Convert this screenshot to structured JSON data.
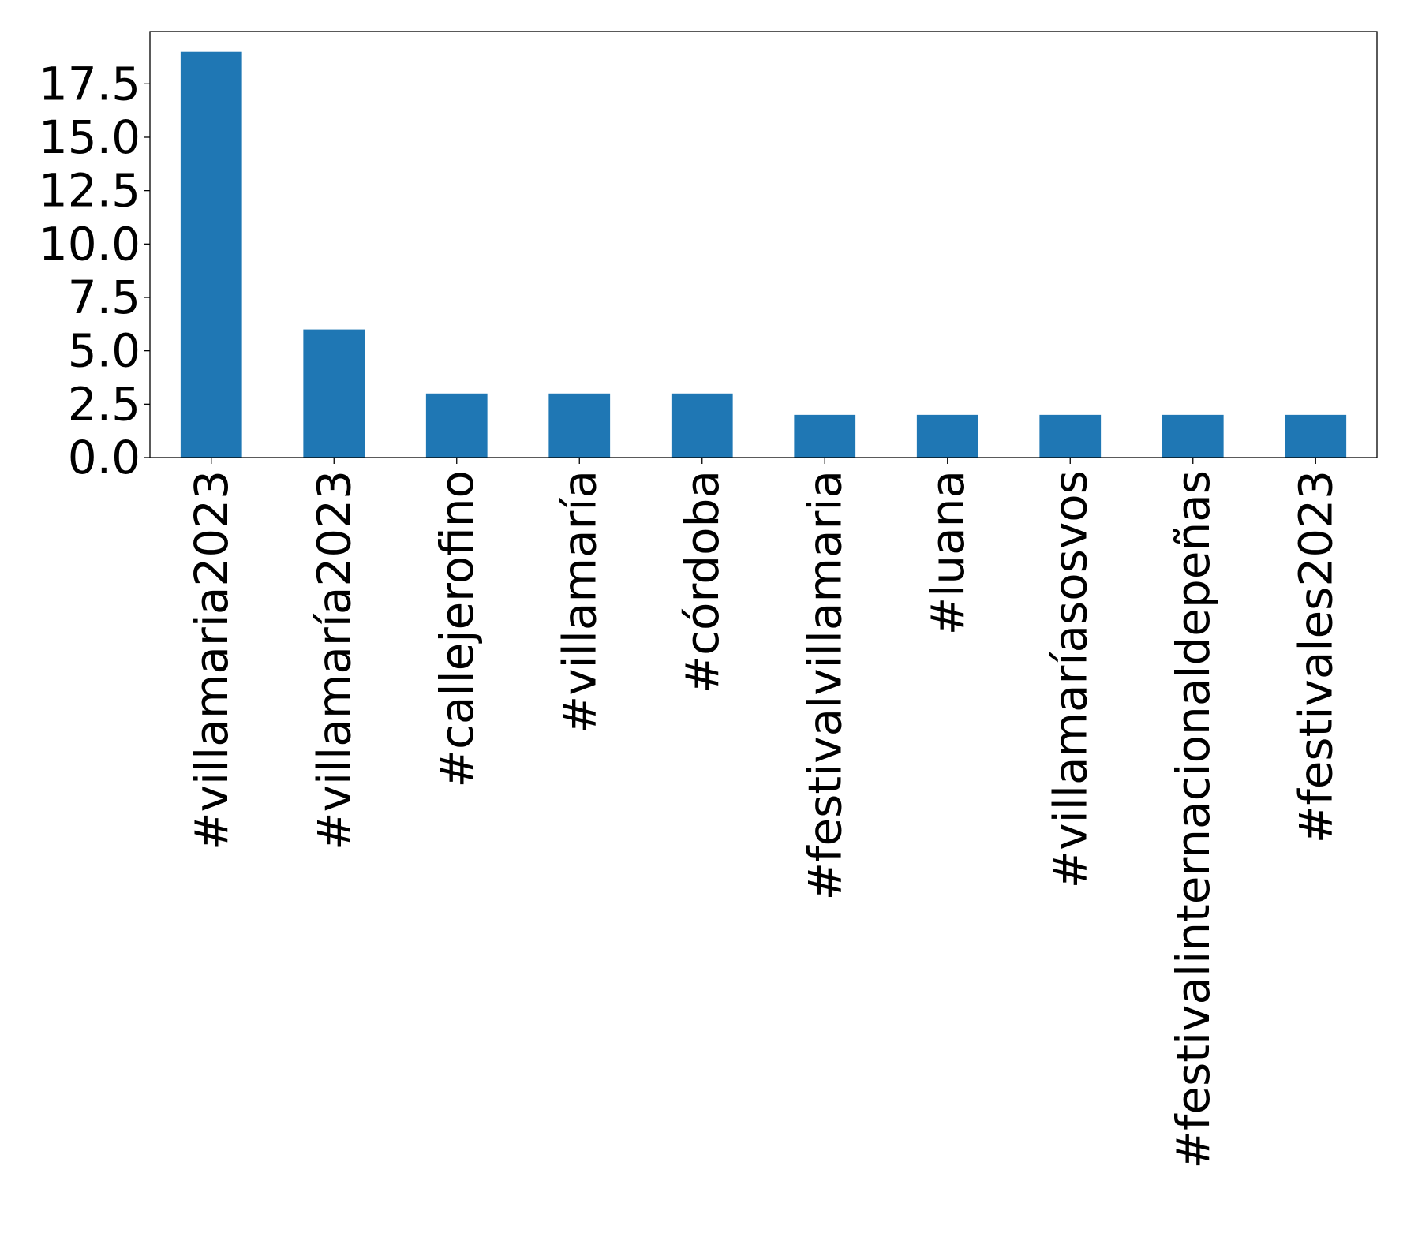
{
  "chart_data": {
    "type": "bar",
    "title": "",
    "xlabel": "",
    "ylabel": "",
    "categories": [
      "#villamaria2023",
      "#villamaría2023",
      "#callejerofino",
      "#villamaría",
      "#córdoba",
      "#festivalvillamaria",
      "#luana",
      "#villamaríasosvos",
      "#festivalinternacionaldepeñas",
      "#festivales2023"
    ],
    "values": [
      19,
      6,
      3,
      3,
      3,
      2,
      2,
      2,
      2,
      2
    ],
    "ylim": [
      0,
      19.95
    ],
    "yticks": [
      0.0,
      2.5,
      5.0,
      7.5,
      10.0,
      12.5,
      15.0,
      17.5
    ],
    "ytick_labels": [
      "0.0",
      "2.5",
      "5.0",
      "7.5",
      "10.0",
      "12.5",
      "15.0",
      "17.5"
    ],
    "bar_color": "#1f77b4",
    "grid": false,
    "legend": "none"
  }
}
